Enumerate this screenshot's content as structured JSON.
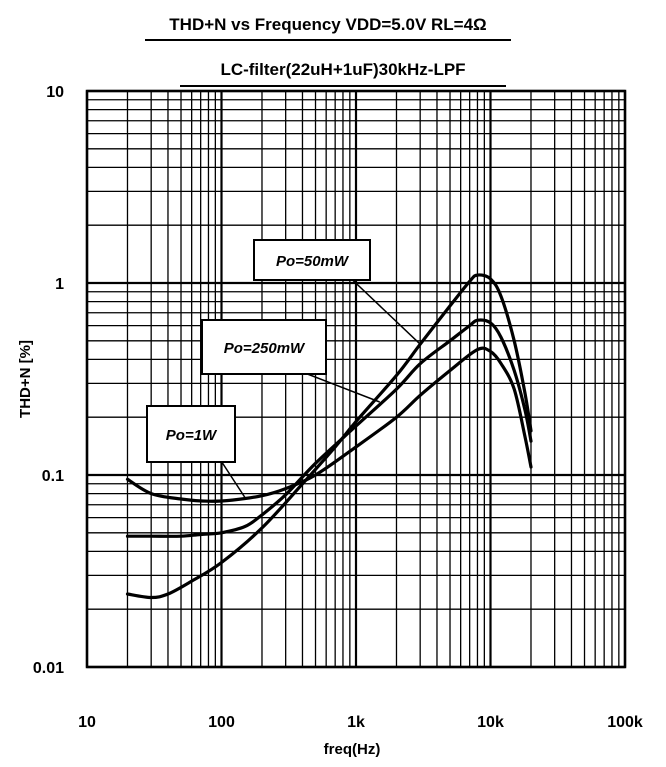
{
  "chart_data": {
    "type": "line",
    "title": "THD+N vs Frequency VDD=5.0V RL=4Ω",
    "subtitle": "LC-filter(22uH+1uF)30kHz-LPF",
    "xlabel": "freq(Hz)",
    "ylabel": "THD+N [%]",
    "x_scale": "log",
    "y_scale": "log",
    "xlim": [
      10,
      100000
    ],
    "ylim": [
      0.01,
      10
    ],
    "grid": true,
    "x_ticks": [
      {
        "value": 10,
        "label": "10"
      },
      {
        "value": 100,
        "label": "100"
      },
      {
        "value": 1000,
        "label": "1k"
      },
      {
        "value": 10000,
        "label": "10k"
      },
      {
        "value": 100000,
        "label": "100k"
      }
    ],
    "y_ticks": [
      {
        "value": 10,
        "label": "10"
      },
      {
        "value": 1,
        "label": "1"
      },
      {
        "value": 0.1,
        "label": "0.1"
      },
      {
        "value": 0.01,
        "label": "0.01"
      }
    ],
    "series": [
      {
        "name": "Po=50mW",
        "points": [
          [
            20,
            0.024
          ],
          [
            30,
            0.023
          ],
          [
            40,
            0.024
          ],
          [
            60,
            0.028
          ],
          [
            100,
            0.035
          ],
          [
            200,
            0.053
          ],
          [
            400,
            0.09
          ],
          [
            700,
            0.14
          ],
          [
            1000,
            0.19
          ],
          [
            2000,
            0.33
          ],
          [
            3000,
            0.48
          ],
          [
            5000,
            0.76
          ],
          [
            7000,
            1.02
          ],
          [
            8000,
            1.1
          ],
          [
            10000,
            1.05
          ],
          [
            12000,
            0.85
          ],
          [
            15000,
            0.5
          ],
          [
            18000,
            0.27
          ],
          [
            20000,
            0.17
          ]
        ]
      },
      {
        "name": "Po=250mW",
        "points": [
          [
            20,
            0.048
          ],
          [
            30,
            0.048
          ],
          [
            50,
            0.048
          ],
          [
            70,
            0.049
          ],
          [
            100,
            0.05
          ],
          [
            150,
            0.054
          ],
          [
            200,
            0.062
          ],
          [
            300,
            0.079
          ],
          [
            500,
            0.115
          ],
          [
            1000,
            0.18
          ],
          [
            2000,
            0.28
          ],
          [
            3000,
            0.38
          ],
          [
            5000,
            0.5
          ],
          [
            7000,
            0.6
          ],
          [
            8000,
            0.64
          ],
          [
            10000,
            0.62
          ],
          [
            12000,
            0.52
          ],
          [
            15000,
            0.35
          ],
          [
            18000,
            0.22
          ],
          [
            20000,
            0.15
          ]
        ]
      },
      {
        "name": "Po=1W",
        "points": [
          [
            20,
            0.095
          ],
          [
            30,
            0.08
          ],
          [
            50,
            0.075
          ],
          [
            80,
            0.073
          ],
          [
            120,
            0.074
          ],
          [
            200,
            0.078
          ],
          [
            300,
            0.085
          ],
          [
            500,
            0.1
          ],
          [
            1000,
            0.14
          ],
          [
            2000,
            0.2
          ],
          [
            3000,
            0.26
          ],
          [
            5000,
            0.35
          ],
          [
            8000,
            0.45
          ],
          [
            10000,
            0.44
          ],
          [
            12000,
            0.38
          ],
          [
            15000,
            0.28
          ],
          [
            18000,
            0.16
          ],
          [
            20000,
            0.11
          ]
        ]
      }
    ],
    "annotations": [
      {
        "text": "Po=50mW",
        "series": "Po=50mW",
        "target": [
          3000,
          0.48
        ]
      },
      {
        "text": "Po=250mW",
        "series": "Po=250mW",
        "target": [
          1500,
          0.24
        ]
      },
      {
        "text": "Po=1W",
        "series": "Po=1W",
        "target": [
          150,
          0.076
        ]
      }
    ]
  }
}
